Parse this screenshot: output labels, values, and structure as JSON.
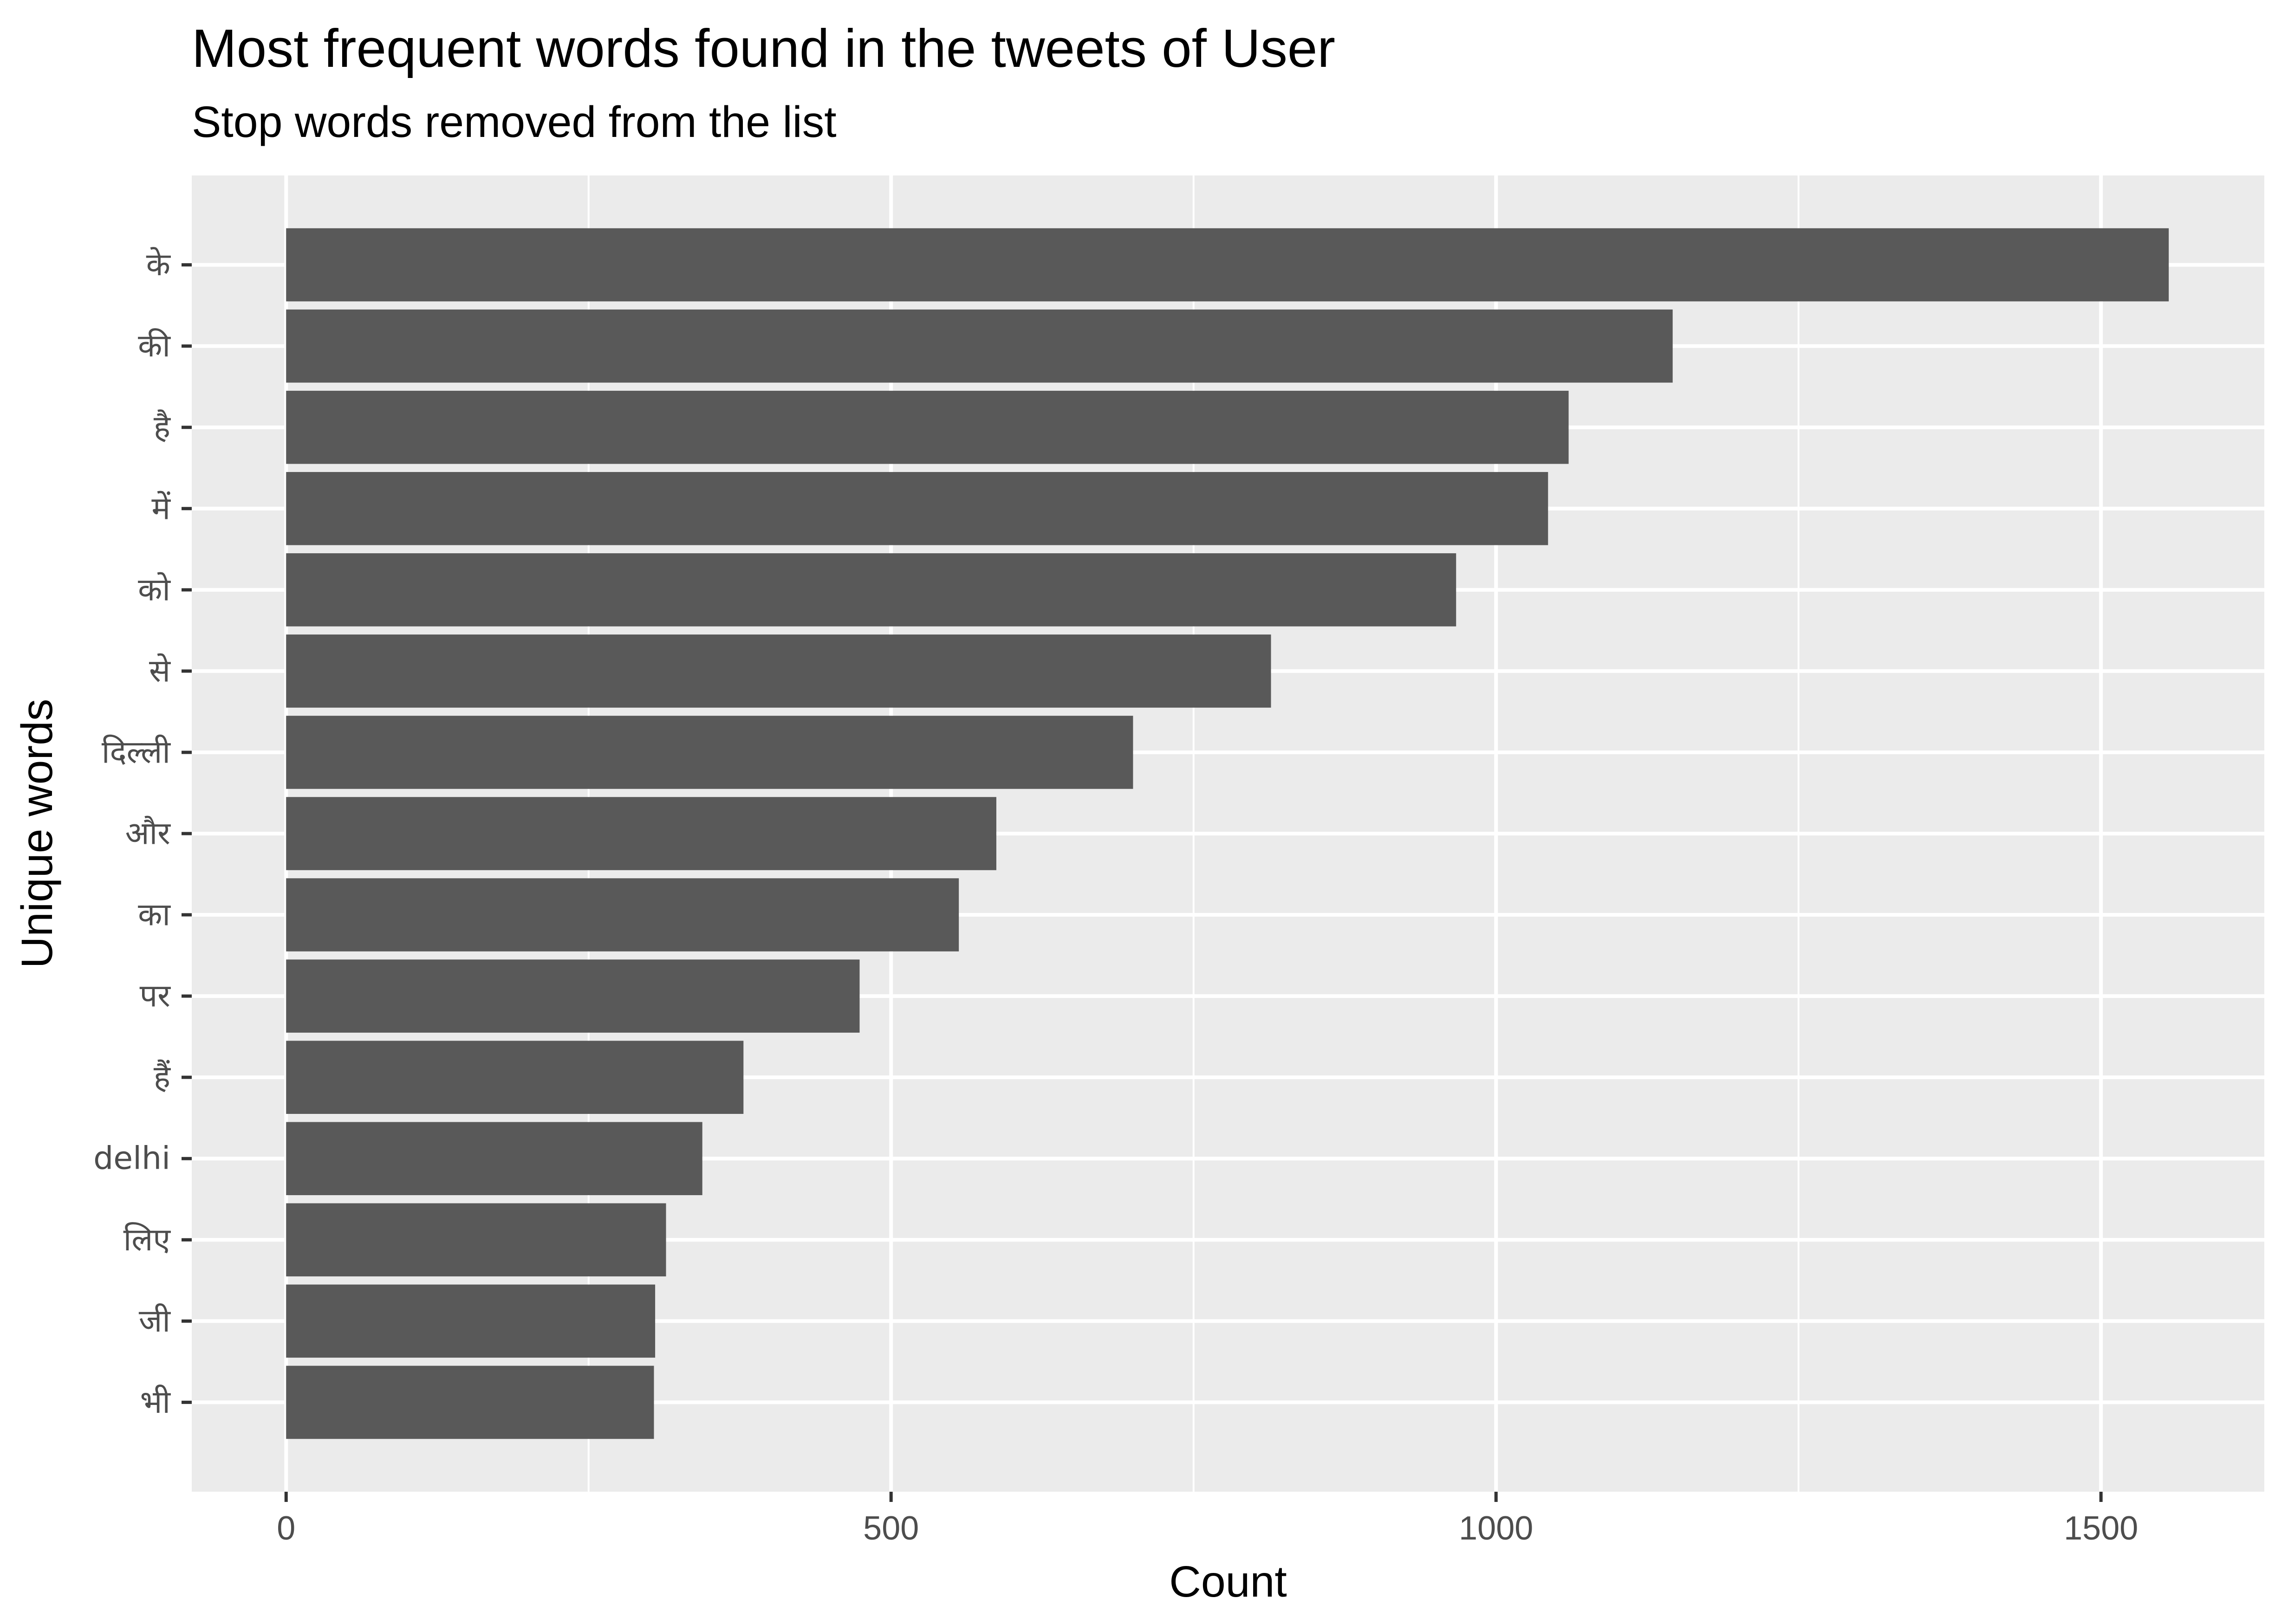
{
  "chart_data": {
    "type": "bar",
    "orientation": "horizontal",
    "title": "Most frequent words found in the tweets of User",
    "subtitle": "Stop words removed from the list",
    "xlabel": "Count",
    "ylabel": "Unique words",
    "xlim": [
      -78,
      1635
    ],
    "xticks": [
      0,
      500,
      1000,
      1500
    ],
    "xtick_labels": [
      "0",
      "500",
      "1000",
      "1500"
    ],
    "grid": true,
    "bar_color": "#595959",
    "panel_color": "#ebebeb",
    "categories": [
      "के",
      "की",
      "है",
      "में",
      "को",
      "से",
      "दिल्ली",
      "और",
      "का",
      "पर",
      "हैं",
      "delhi",
      "लिए",
      "जी",
      "भी"
    ],
    "values": [
      1556,
      1146,
      1060,
      1043,
      967,
      814,
      700,
      587,
      556,
      474,
      378,
      344,
      314,
      305,
      304
    ]
  }
}
